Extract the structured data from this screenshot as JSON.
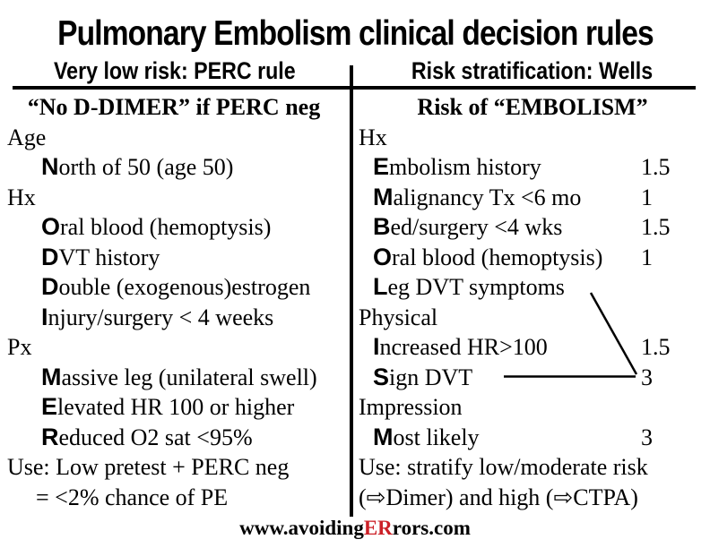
{
  "title": "Pulmonary Embolism clinical decision rules",
  "columns": {
    "left": {
      "header": "Very low risk: PERC rule",
      "subheader": "“No D-DIMER” if PERC neg",
      "rows": [
        {
          "type": "group",
          "text": "Age"
        },
        {
          "type": "item",
          "bold": "N",
          "text": "orth of 50 (age 50)"
        },
        {
          "type": "group",
          "text": "Hx"
        },
        {
          "type": "item",
          "bold": "O",
          "text": "ral blood (hemoptysis)"
        },
        {
          "type": "item",
          "bold": "D",
          "text": "VT history"
        },
        {
          "type": "item",
          "bold": "D",
          "text": "ouble (exogenous)estrogen"
        },
        {
          "type": "item",
          "bold": "I",
          "text": "njury/surgery < 4 weeks"
        },
        {
          "type": "group",
          "text": "Px"
        },
        {
          "type": "item",
          "bold": "M",
          "text": "assive leg (unilateral swell)"
        },
        {
          "type": "item",
          "bold": "E",
          "text": "levated HR 100 or higher"
        },
        {
          "type": "item",
          "bold": "R",
          "text": "educed O2 sat <95%"
        },
        {
          "type": "group",
          "text": "Use: Low pretest + PERC neg"
        },
        {
          "type": "cont",
          "text": "= <2% chance of PE"
        }
      ]
    },
    "right": {
      "header": "Risk stratification: Wells",
      "subheader": "Risk of “EMBOLISM”",
      "rows": [
        {
          "type": "group",
          "text": "Hx"
        },
        {
          "type": "item",
          "bold": "E",
          "text": "mbolism history",
          "score": "1.5"
        },
        {
          "type": "item",
          "bold": "M",
          "text": "alignancy Tx <6 mo",
          "score": "1"
        },
        {
          "type": "item",
          "bold": "B",
          "text": "ed/surgery <4 wks",
          "score": "1.5"
        },
        {
          "type": "item",
          "bold": "O",
          "text": "ral blood (hemoptysis)",
          "score": "1"
        },
        {
          "type": "item",
          "bold": "L",
          "text": "eg DVT symptoms"
        },
        {
          "type": "group",
          "text": "Physical"
        },
        {
          "type": "item",
          "bold": "I",
          "text": "ncreased HR>100",
          "score": "1.5"
        },
        {
          "type": "item",
          "bold": "S",
          "text": "ign DVT",
          "score": "3"
        },
        {
          "type": "group",
          "text": "Impression"
        },
        {
          "type": "item",
          "bold": "M",
          "text": "ost likely",
          "score": "3"
        },
        {
          "type": "group",
          "text": "Use: stratify low/moderate risk"
        },
        {
          "type": "group",
          "text": "(⇨Dimer) and high (⇨CTPA)"
        }
      ]
    }
  },
  "footer": {
    "prefix": "www.avoiding",
    "highlight": "ER",
    "suffix": "rors.com"
  },
  "colors": {
    "accent_red": "#cc2027",
    "text": "#000000",
    "background": "#ffffff"
  }
}
